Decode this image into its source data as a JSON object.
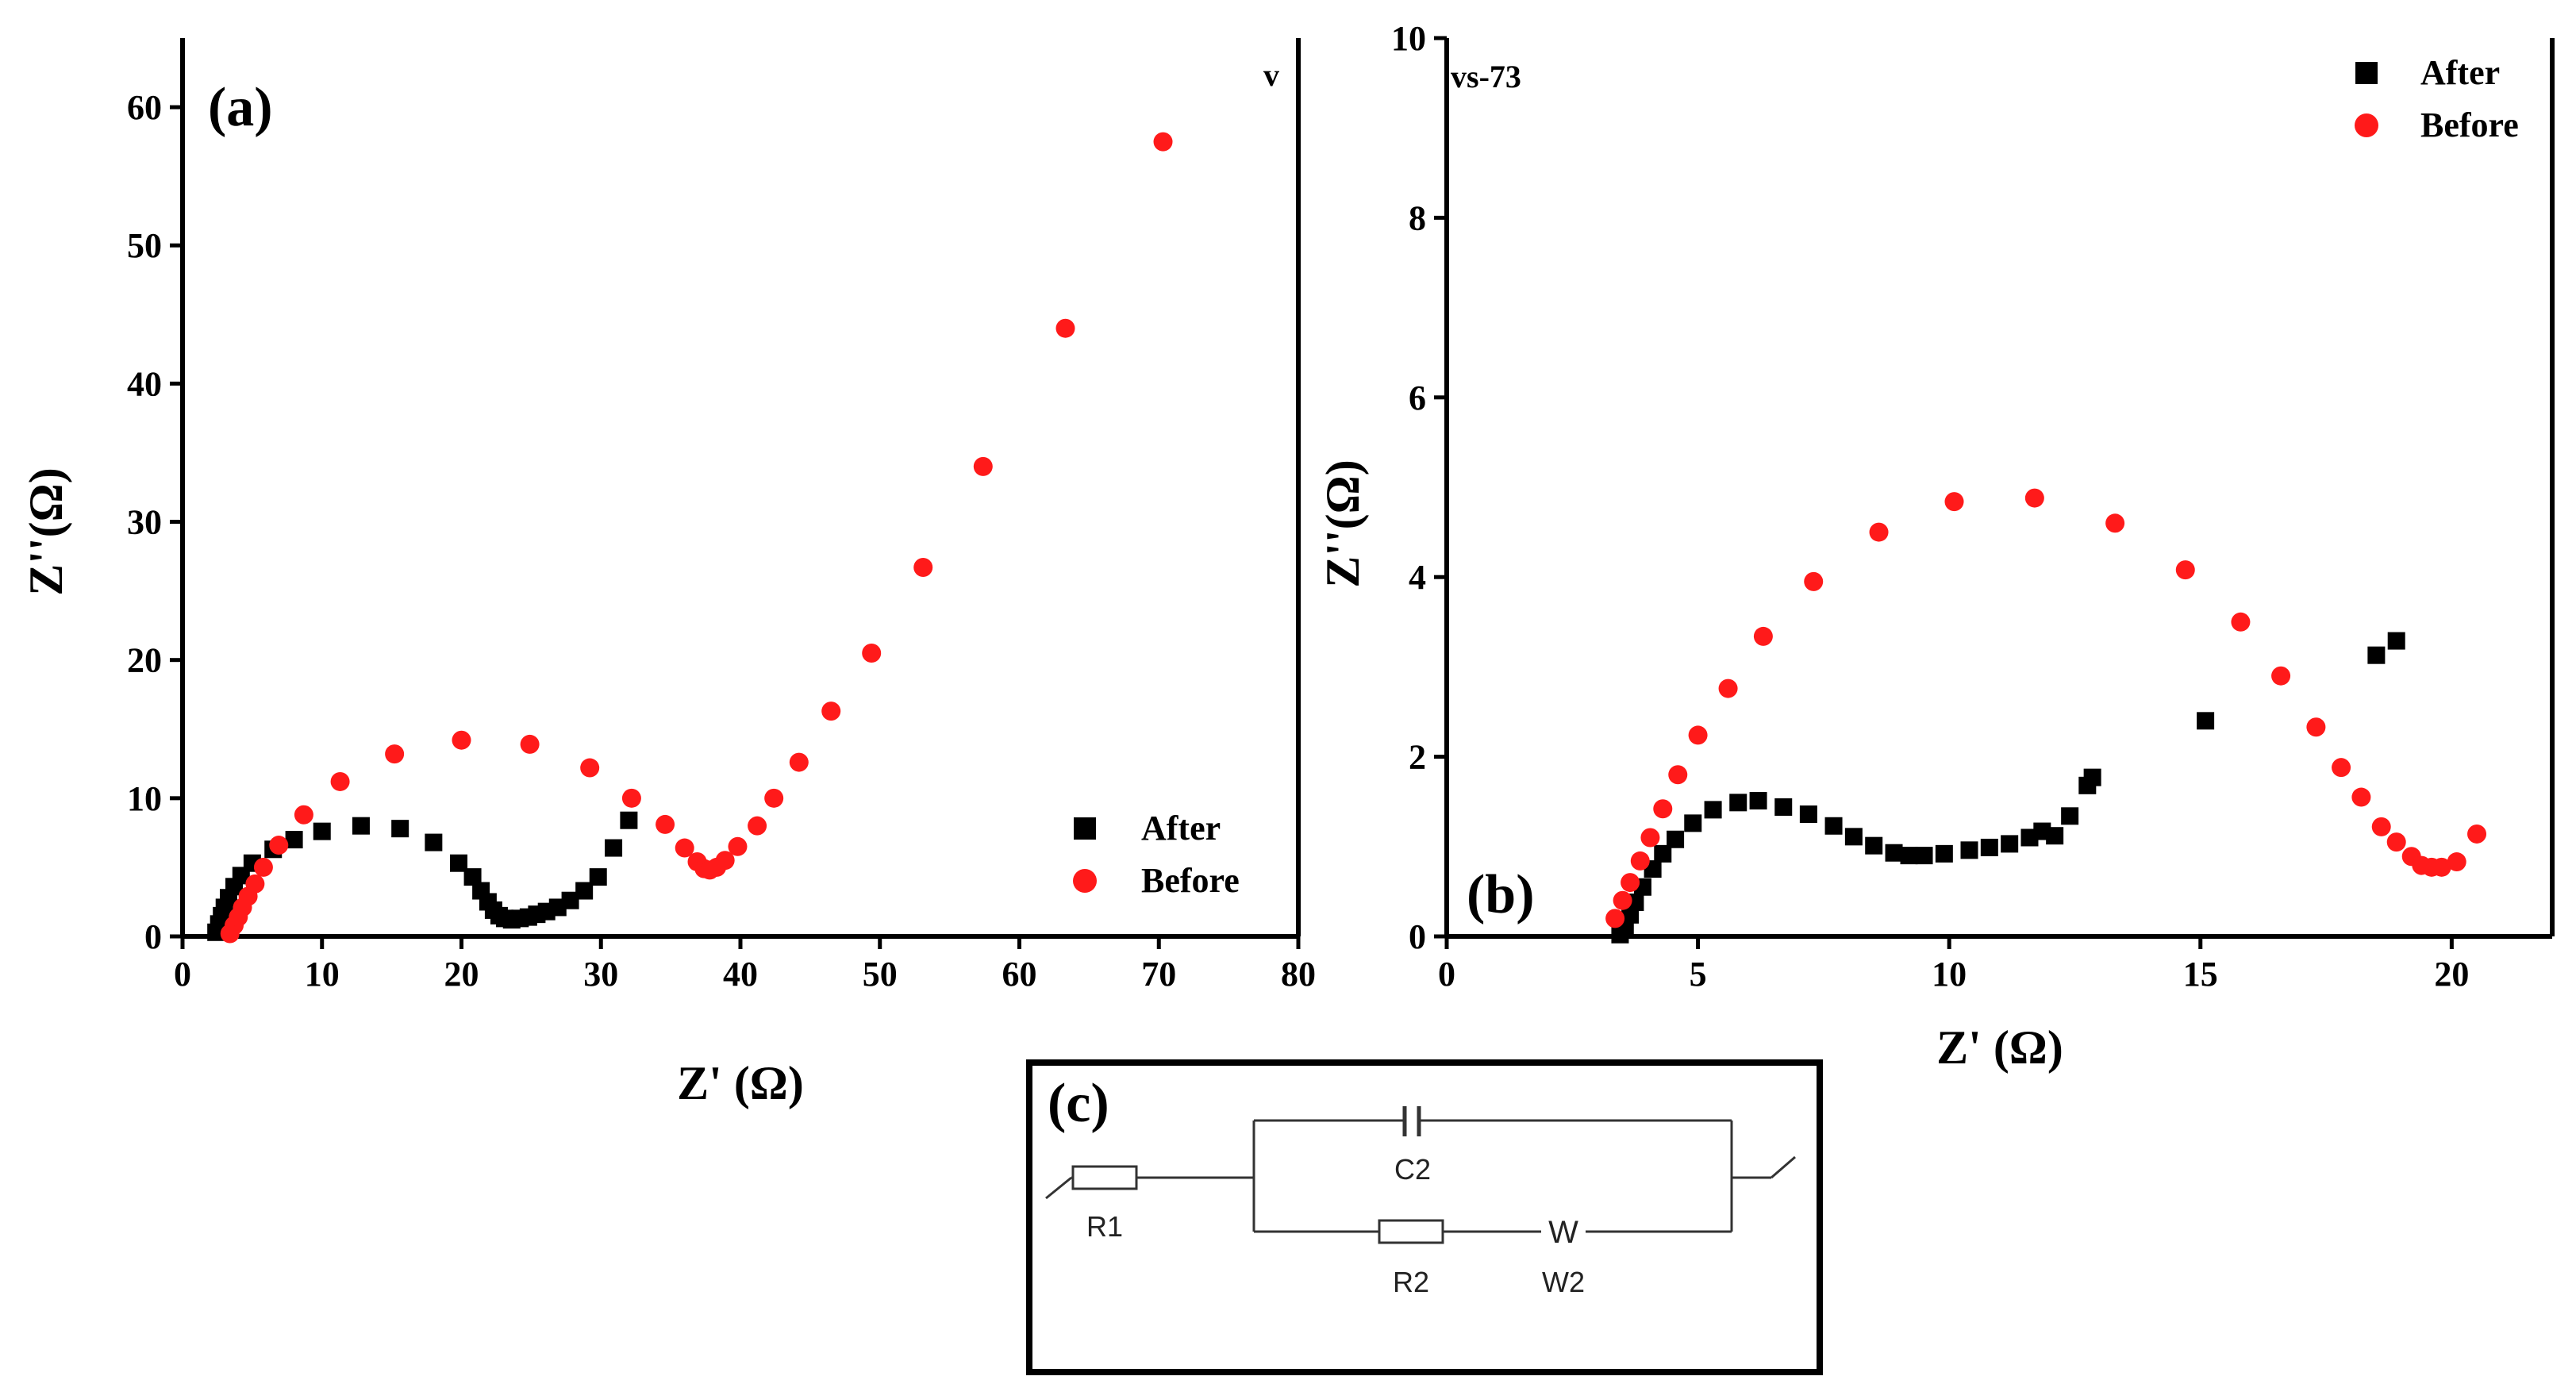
{
  "chart_data": [
    {
      "type": "scatter",
      "panel_label": "(a)",
      "corner_note": "v",
      "xlabel": "Z' (Ω)",
      "ylabel": "Z''(Ω)",
      "xlim": [
        0,
        80
      ],
      "ylim": [
        0,
        65
      ],
      "xticks": [
        0,
        10,
        20,
        30,
        40,
        50,
        60,
        70,
        80
      ],
      "yticks": [
        0,
        10,
        20,
        30,
        40,
        50,
        60
      ],
      "legend_position": "bottom-right",
      "series": [
        {
          "name": "After",
          "marker": "square",
          "color": "#000000",
          "points": [
            [
              2.4,
              0.3
            ],
            [
              2.6,
              0.9
            ],
            [
              2.8,
              1.5
            ],
            [
              3.0,
              2.1
            ],
            [
              3.3,
              2.8
            ],
            [
              3.7,
              3.6
            ],
            [
              4.2,
              4.4
            ],
            [
              5.0,
              5.3
            ],
            [
              6.5,
              6.3
            ],
            [
              8.0,
              7.0
            ],
            [
              10.0,
              7.6
            ],
            [
              12.8,
              8.0
            ],
            [
              15.6,
              7.8
            ],
            [
              18.0,
              6.8
            ],
            [
              19.8,
              5.3
            ],
            [
              20.8,
              4.3
            ],
            [
              21.4,
              3.3
            ],
            [
              21.9,
              2.5
            ],
            [
              22.3,
              1.9
            ],
            [
              22.7,
              1.5
            ],
            [
              23.1,
              1.3
            ],
            [
              23.6,
              1.2
            ],
            [
              24.2,
              1.3
            ],
            [
              24.8,
              1.4
            ],
            [
              25.4,
              1.6
            ],
            [
              26.1,
              1.8
            ],
            [
              26.9,
              2.1
            ],
            [
              27.8,
              2.6
            ],
            [
              28.8,
              3.3
            ],
            [
              29.8,
              4.3
            ],
            [
              30.9,
              6.4
            ],
            [
              32.0,
              8.4
            ]
          ]
        },
        {
          "name": "Before",
          "marker": "circle",
          "color": "#ff1a1a",
          "points": [
            [
              3.4,
              0.2
            ],
            [
              3.7,
              0.8
            ],
            [
              4.0,
              1.4
            ],
            [
              4.3,
              2.1
            ],
            [
              4.7,
              2.9
            ],
            [
              5.2,
              3.8
            ],
            [
              5.8,
              5.0
            ],
            [
              6.9,
              6.6
            ],
            [
              8.7,
              8.8
            ],
            [
              11.3,
              11.2
            ],
            [
              15.2,
              13.2
            ],
            [
              20.0,
              14.2
            ],
            [
              24.9,
              13.9
            ],
            [
              29.2,
              12.2
            ],
            [
              32.2,
              10.0
            ],
            [
              34.6,
              8.1
            ],
            [
              36.0,
              6.4
            ],
            [
              36.9,
              5.4
            ],
            [
              37.4,
              4.9
            ],
            [
              37.8,
              4.8
            ],
            [
              38.3,
              5.0
            ],
            [
              38.9,
              5.5
            ],
            [
              39.8,
              6.5
            ],
            [
              41.2,
              8.0
            ],
            [
              42.4,
              10.0
            ],
            [
              44.2,
              12.6
            ],
            [
              46.5,
              16.3
            ],
            [
              49.4,
              20.5
            ],
            [
              53.1,
              26.7
            ],
            [
              57.4,
              34.0
            ],
            [
              63.3,
              44.0
            ],
            [
              70.3,
              57.5
            ]
          ]
        }
      ]
    },
    {
      "type": "scatter",
      "panel_label": "(b)",
      "corner_note": "vs-73",
      "xlabel": "Z' (Ω)",
      "ylabel": "Z''(Ω)",
      "xlim": [
        0,
        22
      ],
      "ylim": [
        0,
        10
      ],
      "xticks": [
        0,
        5,
        10,
        15,
        20
      ],
      "yticks": [
        0,
        2,
        4,
        6,
        8,
        10
      ],
      "legend_position": "top-right",
      "series": [
        {
          "name": "After",
          "marker": "square",
          "color": "#000000",
          "points": [
            [
              3.45,
              0.02
            ],
            [
              3.55,
              0.12
            ],
            [
              3.65,
              0.24
            ],
            [
              3.75,
              0.38
            ],
            [
              3.9,
              0.55
            ],
            [
              4.1,
              0.75
            ],
            [
              4.3,
              0.92
            ],
            [
              4.55,
              1.08
            ],
            [
              4.9,
              1.26
            ],
            [
              5.3,
              1.41
            ],
            [
              5.8,
              1.49
            ],
            [
              6.2,
              1.51
            ],
            [
              6.7,
              1.44
            ],
            [
              7.2,
              1.36
            ],
            [
              7.7,
              1.23
            ],
            [
              8.1,
              1.11
            ],
            [
              8.5,
              1.01
            ],
            [
              8.9,
              0.93
            ],
            [
              9.2,
              0.9
            ],
            [
              9.5,
              0.9
            ],
            [
              9.9,
              0.92
            ],
            [
              10.4,
              0.96
            ],
            [
              10.8,
              0.99
            ],
            [
              11.2,
              1.03
            ],
            [
              11.6,
              1.1
            ],
            [
              11.85,
              1.17
            ],
            [
              12.1,
              1.12
            ],
            [
              12.4,
              1.34
            ],
            [
              12.75,
              1.68
            ],
            [
              12.85,
              1.77
            ],
            [
              15.1,
              2.4
            ],
            [
              18.5,
              3.13
            ],
            [
              18.9,
              3.29
            ]
          ]
        },
        {
          "name": "Before",
          "marker": "circle",
          "color": "#ff1a1a",
          "points": [
            [
              3.35,
              0.2
            ],
            [
              3.5,
              0.4
            ],
            [
              3.65,
              0.6
            ],
            [
              3.85,
              0.84
            ],
            [
              4.05,
              1.1
            ],
            [
              4.3,
              1.42
            ],
            [
              4.6,
              1.8
            ],
            [
              5.0,
              2.24
            ],
            [
              5.6,
              2.76
            ],
            [
              6.3,
              3.34
            ],
            [
              7.3,
              3.95
            ],
            [
              8.6,
              4.5
            ],
            [
              10.1,
              4.84
            ],
            [
              11.7,
              4.88
            ],
            [
              13.3,
              4.6
            ],
            [
              14.7,
              4.08
            ],
            [
              15.8,
              3.5
            ],
            [
              16.6,
              2.9
            ],
            [
              17.3,
              2.33
            ],
            [
              17.8,
              1.88
            ],
            [
              18.2,
              1.55
            ],
            [
              18.6,
              1.22
            ],
            [
              18.9,
              1.05
            ],
            [
              19.2,
              0.89
            ],
            [
              19.4,
              0.79
            ],
            [
              19.6,
              0.77
            ],
            [
              19.8,
              0.77
            ],
            [
              20.1,
              0.83
            ],
            [
              20.5,
              1.14
            ]
          ]
        }
      ]
    }
  ],
  "circuit": {
    "panel_label": "(c)",
    "labels": {
      "r1": "R1",
      "c2": "C2",
      "r2": "R2",
      "w2": "W2",
      "w_symbol": "W"
    }
  },
  "colors": {
    "after": "#000000",
    "before": "#ff1a1a"
  }
}
